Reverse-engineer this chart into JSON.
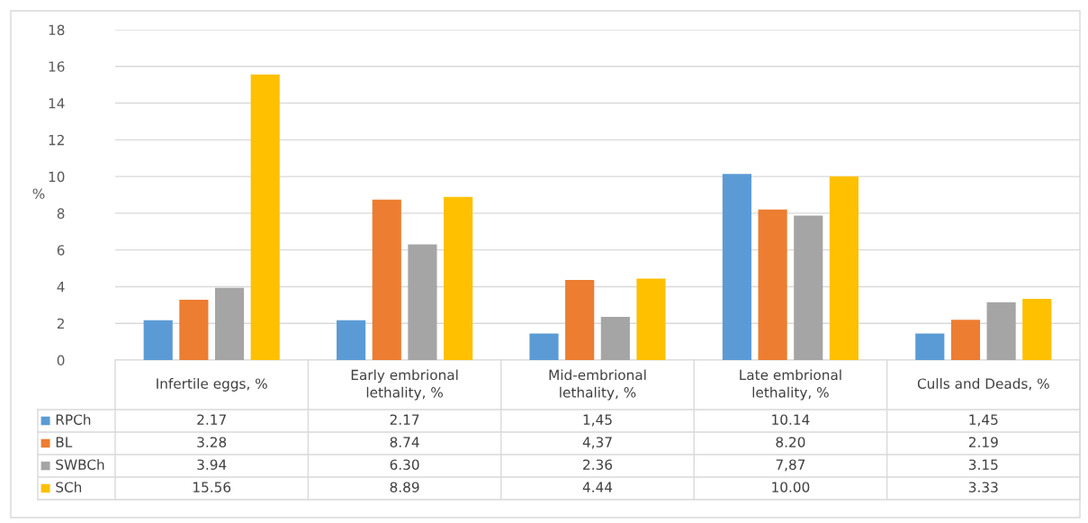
{
  "chart_data": {
    "type": "bar",
    "ylabel": "%",
    "categories": [
      "Infertile eggs, %",
      "Early embrional lethality, %",
      "Mid-embrional lethality, %",
      "Late embrional lethality, %",
      "Culls and Deads, %"
    ],
    "series": [
      {
        "name": "RPCh",
        "color": "#5b9bd5",
        "values": [
          2.17,
          2.17,
          1.45,
          10.14,
          1.45
        ],
        "value_labels": [
          "2.17",
          "2.17",
          "1,45",
          "10.14",
          "1,45"
        ]
      },
      {
        "name": "BL",
        "color": "#ed7d31",
        "values": [
          3.28,
          8.74,
          4.37,
          8.2,
          2.19
        ],
        "value_labels": [
          "3.28",
          "8.74",
          "4,37",
          "8.20",
          "2.19"
        ]
      },
      {
        "name": "SWBCh",
        "color": "#a5a5a5",
        "values": [
          3.94,
          6.3,
          2.36,
          7.87,
          3.15
        ],
        "value_labels": [
          "3.94",
          "6.30",
          "2.36",
          "7,87",
          "3.15"
        ]
      },
      {
        "name": "SCh",
        "color": "#ffc000",
        "values": [
          15.56,
          8.89,
          4.44,
          10.0,
          3.33
        ],
        "value_labels": [
          "15.56",
          "8.89",
          "4.44",
          "10.00",
          "3.33"
        ]
      }
    ],
    "ylim": [
      0,
      18
    ],
    "yticks": [
      0,
      2,
      4,
      6,
      8,
      10,
      12,
      14,
      16,
      18
    ],
    "grid": "y",
    "legend": "bottom"
  }
}
